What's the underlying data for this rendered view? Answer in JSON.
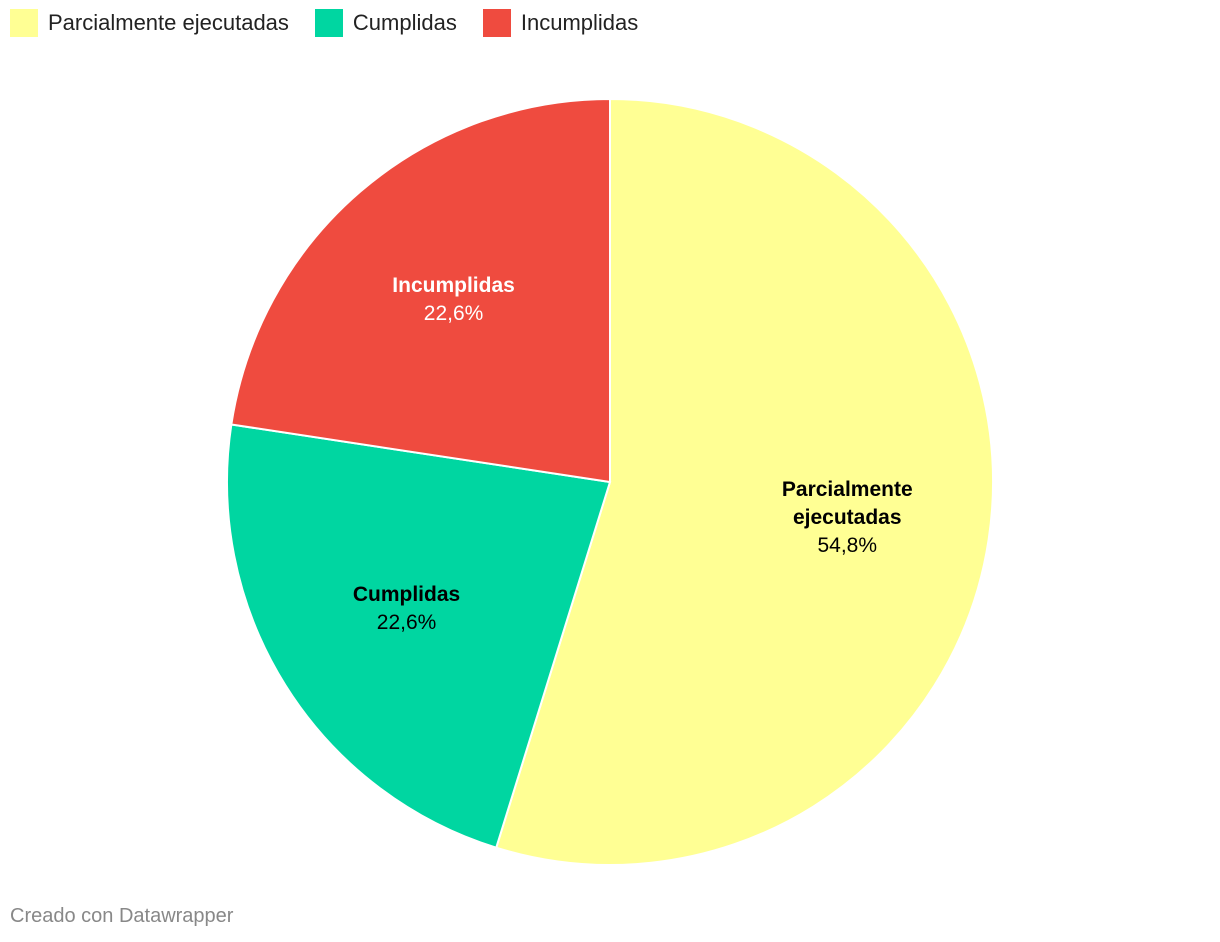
{
  "chart_data": {
    "type": "pie",
    "categories": [
      "Parcialmente ejecutadas",
      "Cumplidas",
      "Incumplidas"
    ],
    "values": [
      54.8,
      22.6,
      22.6
    ],
    "value_labels": [
      "54,8%",
      "22,6%",
      "22,6%"
    ],
    "colors": [
      "#ffff94",
      "#00d6a1",
      "#ef4b3f"
    ],
    "label_colors": [
      "#000000",
      "#000000",
      "#ffffff"
    ],
    "legend": "top-left",
    "credit": "Creado con Datawrapper"
  }
}
